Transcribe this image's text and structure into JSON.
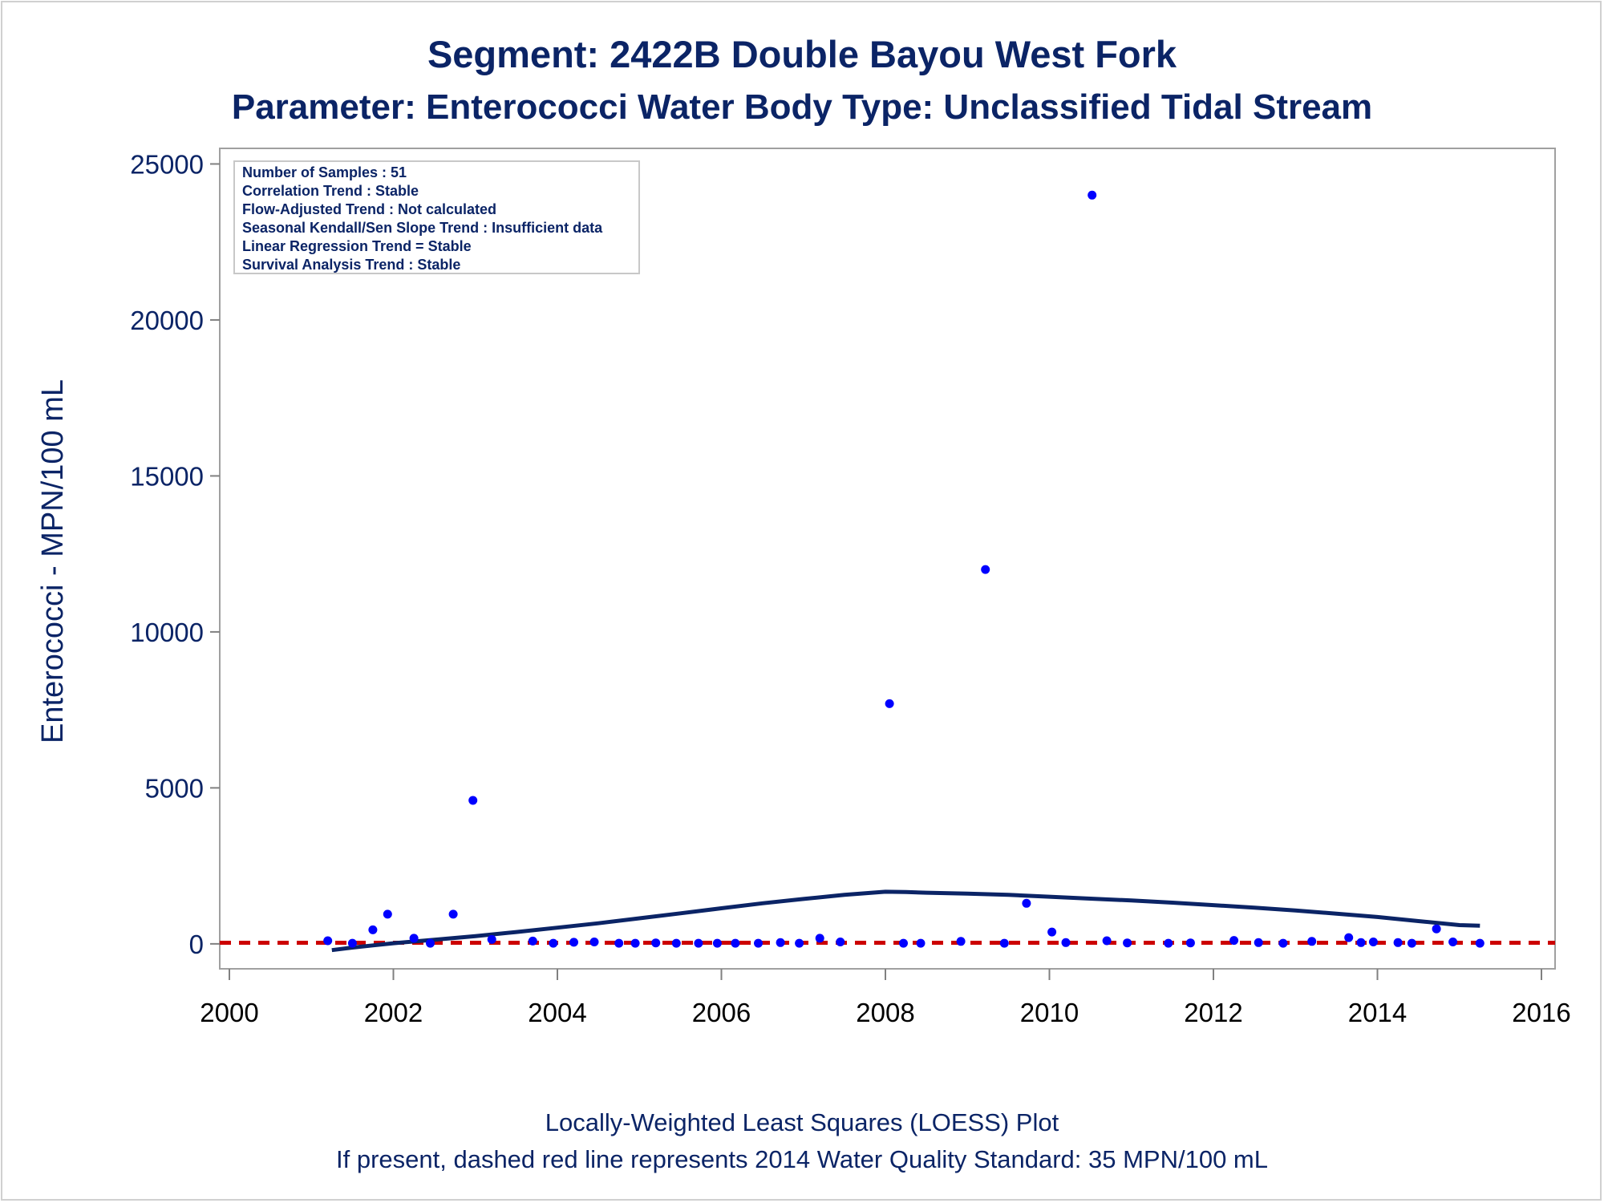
{
  "chart_data": {
    "type": "scatter",
    "title": "Segment: 2422B  Double Bayou West Fork",
    "subtitle": "Parameter: Enterococci   Water Body Type: Unclassified Tidal Stream",
    "xlabel": "",
    "ylabel": "Enterococci - MPN/100 mL",
    "xlim": [
      2000,
      2016
    ],
    "ylim": [
      -800,
      25500
    ],
    "x_ticks": [
      "2000",
      "2002",
      "2004",
      "2006",
      "2008",
      "2010",
      "2012",
      "2014",
      "2016"
    ],
    "y_ticks": [
      "0",
      "5000",
      "10000",
      "15000",
      "20000",
      "25000"
    ],
    "grid": false,
    "colors": {
      "points": "#0000ff",
      "loess": "#0b2466",
      "standard": "#cc0000",
      "text": "#0b2466"
    },
    "stats_box": {
      "placement": "top-left",
      "lines": [
        "Number of Samples : 51",
        "Correlation Trend : Stable",
        "Flow-Adjusted Trend : Not calculated",
        "Seasonal Kendall/Sen Slope Trend : Insufficient data",
        "Linear Regression Trend = Stable",
        "Survival Analysis Trend : Stable"
      ]
    },
    "standard_line": {
      "y": 35,
      "style": "dashed"
    },
    "series": [
      {
        "type": "scatter",
        "x": [
          2001.2,
          2001.5,
          2001.75,
          2001.93,
          2002.25,
          2002.45,
          2002.73,
          2002.97,
          2003.2,
          2003.7,
          2003.95,
          2004.2,
          2004.45,
          2004.75,
          2004.95,
          2005.2,
          2005.45,
          2005.72,
          2005.95,
          2006.17,
          2006.45,
          2006.72,
          2006.95,
          2007.2,
          2007.45,
          2008.05,
          2008.22,
          2008.43,
          2008.92,
          2009.22,
          2009.45,
          2009.72,
          2010.03,
          2010.2,
          2010.7,
          2010.95,
          2011.45,
          2011.72,
          2012.25,
          2012.55,
          2012.85,
          2013.2,
          2013.65,
          2013.8,
          2013.95,
          2014.25,
          2014.42,
          2014.72,
          2014.92,
          2015.25,
          2010.52
        ],
        "y": [
          100,
          20,
          450,
          950,
          180,
          20,
          950,
          4600,
          140,
          90,
          20,
          50,
          60,
          20,
          20,
          30,
          20,
          20,
          20,
          20,
          20,
          40,
          20,
          180,
          60,
          7700,
          20,
          20,
          80,
          12000,
          20,
          1300,
          380,
          40,
          100,
          30,
          20,
          30,
          110,
          40,
          20,
          80,
          200,
          40,
          60,
          40,
          20,
          480,
          60,
          20,
          24000
        ]
      },
      {
        "type": "line",
        "x": [
          2001.25,
          2001.5,
          2001.75,
          2002,
          2002.5,
          2003,
          2003.5,
          2004,
          2004.5,
          2005,
          2005.5,
          2006,
          2006.5,
          2007,
          2007.5,
          2008,
          2008.25,
          2008.5,
          2009,
          2009.5,
          2010,
          2010.5,
          2011,
          2011.5,
          2012,
          2012.5,
          2013,
          2013.5,
          2014,
          2014.5,
          2015,
          2015.25
        ],
        "y": [
          -200,
          -120,
          -50,
          20,
          130,
          250,
          380,
          520,
          660,
          820,
          980,
          1140,
          1300,
          1440,
          1570,
          1670,
          1660,
          1640,
          1610,
          1570,
          1510,
          1450,
          1390,
          1320,
          1240,
          1160,
          1070,
          970,
          860,
          730,
          600,
          580
        ]
      }
    ]
  },
  "footer": {
    "line1": "Locally-Weighted Least Squares (LOESS) Plot",
    "line2": "If present, dashed red line represents 2014 Water Quality Standard: 35 MPN/100 mL"
  }
}
